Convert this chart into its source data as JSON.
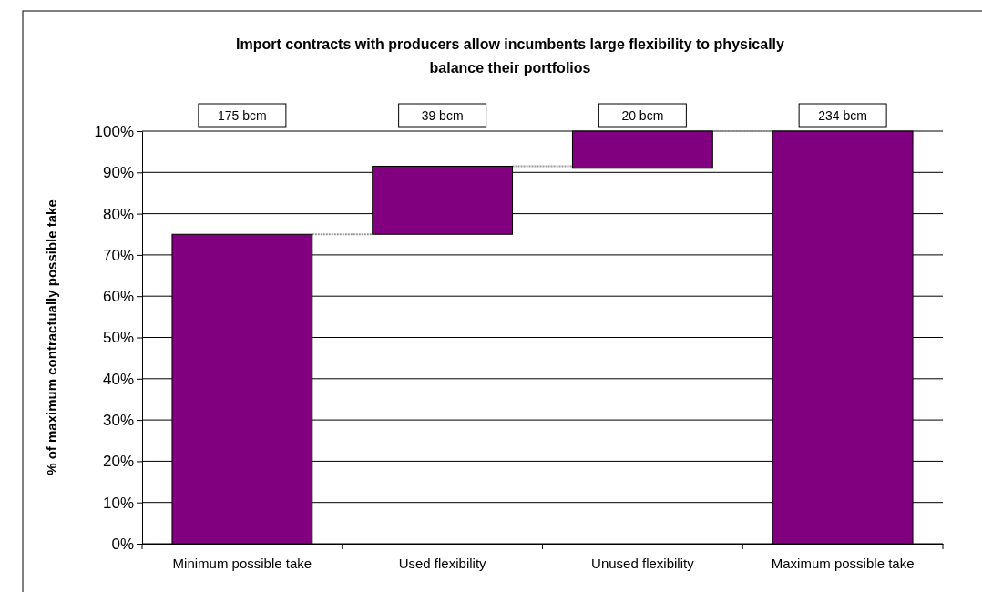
{
  "chart_data": {
    "type": "bar",
    "title": "Import contracts with producers allow incumbents large flexibility to physically balance their portfolios",
    "ylabel": "% of maximum contractually possible take",
    "categories": [
      "Minimum possible take",
      "Used flexibility",
      "Unused flexibility",
      "Maximum possible take"
    ],
    "values": [
      75,
      16.5,
      9,
      100
    ],
    "base": [
      0,
      75,
      91,
      0
    ],
    "annotations": [
      "175 bcm",
      "39 bcm",
      "20 bcm",
      "234 bcm"
    ],
    "color": "#800080",
    "ylim": [
      0,
      100
    ],
    "yticks": [
      {
        "value": 0,
        "label": "0%"
      },
      {
        "value": 10,
        "label": "10%"
      },
      {
        "value": 20,
        "label": "20%"
      },
      {
        "value": 30,
        "label": "30%"
      },
      {
        "value": 40,
        "label": "40%"
      },
      {
        "value": 50,
        "label": "50%"
      },
      {
        "value": 60,
        "label": "60%"
      },
      {
        "value": 70,
        "label": "70%"
      },
      {
        "value": 80,
        "label": "80%"
      },
      {
        "value": 90,
        "label": "90%"
      },
      {
        "value": 100,
        "label": "100%"
      }
    ],
    "grid": "y"
  }
}
